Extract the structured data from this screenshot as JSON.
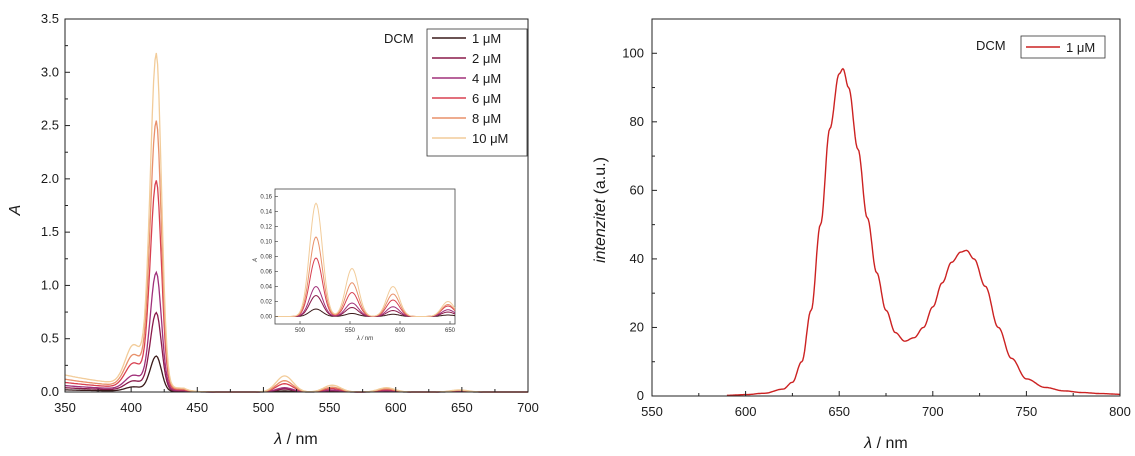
{
  "chart_data": [
    {
      "type": "line",
      "id": "absorbance",
      "xlabel_symbol": "λ",
      "xlabel_unit": " / nm",
      "ylabel": "A",
      "xlim": [
        350,
        700
      ],
      "ylim": [
        0,
        3.5
      ],
      "xticks": [
        "350",
        "400",
        "450",
        "500",
        "550",
        "600",
        "650",
        "700"
      ],
      "yticks": [
        "0.0",
        "0.5",
        "1.0",
        "1.5",
        "2.0",
        "2.5",
        "3.0",
        "3.5"
      ],
      "legend_title": "DCM",
      "legend_position": "top-right",
      "series": [
        {
          "name": "1 μM",
          "color": "#3a1a1a",
          "peak": 0.33,
          "base": 0.02
        },
        {
          "name": "2 μM",
          "color": "#8a1a4a",
          "peak": 0.73,
          "base": 0.04
        },
        {
          "name": "4 μM",
          "color": "#a0307a",
          "peak": 1.1,
          "base": 0.06
        },
        {
          "name": "6 μM",
          "color": "#d84050",
          "peak": 1.95,
          "base": 0.09
        },
        {
          "name": "8 μM",
          "color": "#e8906a",
          "peak": 2.5,
          "base": 0.12
        },
        {
          "name": "10 μM",
          "color": "#f2cc9a",
          "peak": 3.12,
          "base": 0.16
        }
      ],
      "inset": {
        "xlabel": "λ / nm",
        "ylabel": "A",
        "xlim": [
          475,
          655
        ],
        "ylim": [
          -0.01,
          0.17
        ],
        "xticks": [
          "500",
          "550",
          "600",
          "650"
        ],
        "yticks": [
          "0.00",
          "0.02",
          "0.04",
          "0.06",
          "0.08",
          "0.10",
          "0.12",
          "0.14",
          "0.16"
        ],
        "peaks": [
          {
            "x": 516,
            "values": [
              0.01,
              0.028,
              0.04,
              0.078,
              0.106,
              0.151
            ]
          },
          {
            "x": 552,
            "values": [
              0.004,
              0.012,
              0.018,
              0.032,
              0.045,
              0.064
            ]
          },
          {
            "x": 593,
            "values": [
              0.003,
              0.008,
              0.013,
              0.022,
              0.03,
              0.04
            ]
          },
          {
            "x": 648,
            "values": [
              0.002,
              0.006,
              0.009,
              0.014,
              0.016,
              0.02
            ]
          }
        ]
      }
    },
    {
      "type": "line",
      "id": "emission",
      "xlabel_symbol": "λ",
      "xlabel_unit": " / nm",
      "ylabel_italic": "intenzitet",
      "ylabel_rest": " (a.u.)",
      "xlim": [
        550,
        800
      ],
      "ylim": [
        0,
        110
      ],
      "xticks": [
        "550",
        "600",
        "650",
        "700",
        "750",
        "800"
      ],
      "yticks": [
        "0",
        "20",
        "40",
        "60",
        "80",
        "100"
      ],
      "legend_title": "DCM",
      "legend_position": "top-right",
      "series": [
        {
          "name": "1 μM",
          "color": "#cc2222",
          "points": [
            [
              590,
              0.2
            ],
            [
              600,
              0.4
            ],
            [
              610,
              0.8
            ],
            [
              620,
              2
            ],
            [
              625,
              4
            ],
            [
              630,
              10
            ],
            [
              635,
              25
            ],
            [
              640,
              50
            ],
            [
              645,
              78
            ],
            [
              650,
              94
            ],
            [
              652,
              95.5
            ],
            [
              655,
              90
            ],
            [
              660,
              72
            ],
            [
              665,
              52
            ],
            [
              670,
              36
            ],
            [
              675,
              25
            ],
            [
              680,
              18.5
            ],
            [
              685,
              16
            ],
            [
              690,
              17
            ],
            [
              695,
              20
            ],
            [
              700,
              26
            ],
            [
              705,
              33
            ],
            [
              710,
              39
            ],
            [
              715,
              42
            ],
            [
              718,
              42.5
            ],
            [
              722,
              40
            ],
            [
              728,
              32
            ],
            [
              735,
              20
            ],
            [
              742,
              11
            ],
            [
              750,
              5
            ],
            [
              760,
              2.5
            ],
            [
              770,
              1.5
            ],
            [
              780,
              1
            ],
            [
              790,
              0.7
            ],
            [
              800,
              0.5
            ]
          ]
        }
      ]
    }
  ]
}
